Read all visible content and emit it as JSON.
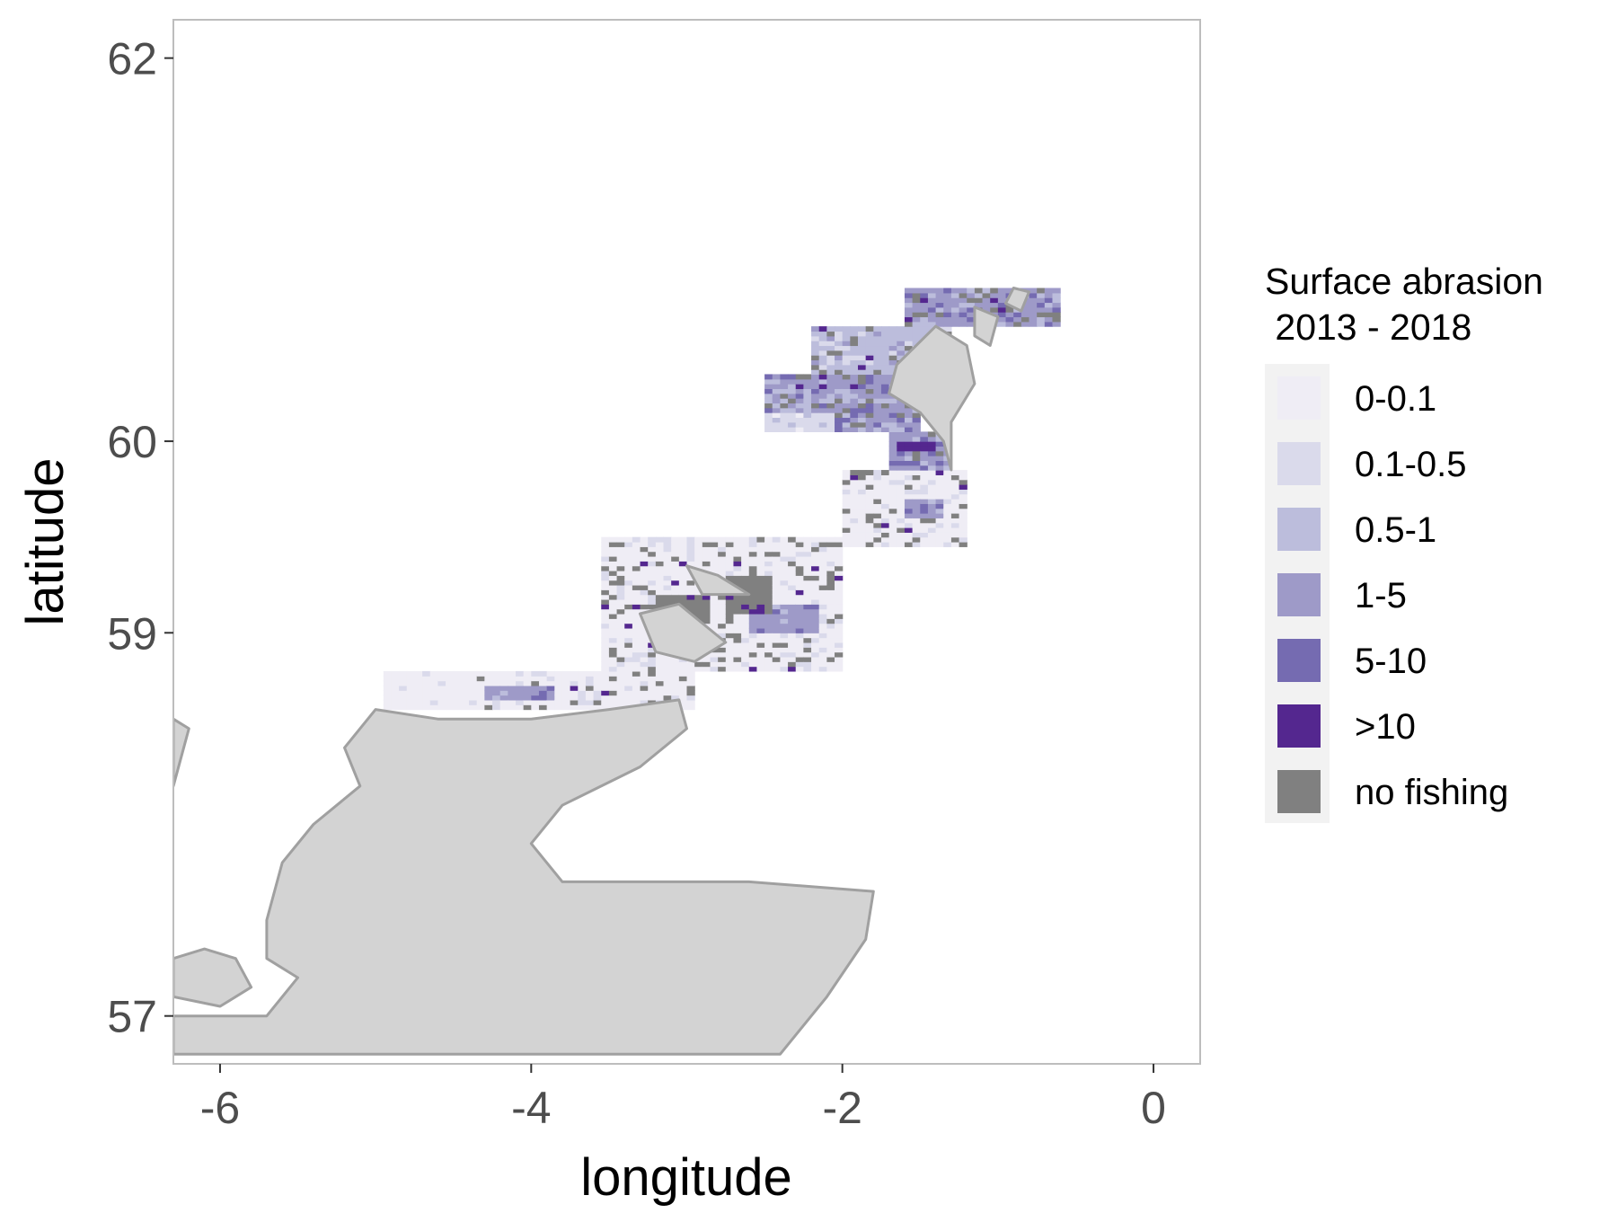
{
  "axes": {
    "xlabel": "longitude",
    "ylabel": "latitude",
    "xlim": [
      -6.3,
      0.3
    ],
    "ylim": [
      56.75,
      62.2
    ],
    "x_ticks": [
      -6,
      -4,
      -2,
      0
    ],
    "y_ticks": [
      57,
      59,
      60,
      62
    ],
    "grid": false,
    "panel_border_color": "#bdbdbd"
  },
  "legend": {
    "title_line1": "Surface abrasion",
    "title_line2": " 2013 - 2018",
    "placement": "right",
    "items": [
      {
        "label": "0-0.1",
        "color": "#efedf5"
      },
      {
        "label": "0.1-0.5",
        "color": "#dadaeb"
      },
      {
        "label": "0.5-1",
        "color": "#bcbddc"
      },
      {
        "label": "1-5",
        "color": "#9e9ac8"
      },
      {
        "label": "5-10",
        "color": "#756bb1"
      },
      {
        "label": ">10",
        "color": "#54278f"
      },
      {
        "label": "no fishing",
        "color": "#808080"
      }
    ]
  },
  "land": {
    "fill": "#d3d3d3",
    "stroke": "#a0a0a0",
    "polygons": [
      {
        "name": "mainland",
        "points": [
          [
            -5.2,
            58.4
          ],
          [
            -5.0,
            58.6
          ],
          [
            -4.6,
            58.55
          ],
          [
            -4.0,
            58.55
          ],
          [
            -3.5,
            58.6
          ],
          [
            -3.05,
            58.65
          ],
          [
            -3.0,
            58.5
          ],
          [
            -3.3,
            58.3
          ],
          [
            -3.8,
            58.1
          ],
          [
            -4.0,
            57.9
          ],
          [
            -3.8,
            57.7
          ],
          [
            -3.3,
            57.7
          ],
          [
            -2.6,
            57.7
          ],
          [
            -1.8,
            57.65
          ],
          [
            -1.85,
            57.4
          ],
          [
            -2.1,
            57.1
          ],
          [
            -2.4,
            56.8
          ],
          [
            -6.3,
            56.8
          ],
          [
            -6.3,
            57.0
          ],
          [
            -5.7,
            57.0
          ],
          [
            -5.5,
            57.2
          ],
          [
            -5.7,
            57.3
          ],
          [
            -5.7,
            57.5
          ],
          [
            -5.6,
            57.8
          ],
          [
            -5.4,
            58.0
          ],
          [
            -5.1,
            58.2
          ]
        ]
      },
      {
        "name": "skye",
        "points": [
          [
            -6.3,
            57.3
          ],
          [
            -6.1,
            57.35
          ],
          [
            -5.9,
            57.3
          ],
          [
            -5.8,
            57.15
          ],
          [
            -6.0,
            57.05
          ],
          [
            -6.3,
            57.1
          ]
        ]
      },
      {
        "name": "lewis",
        "points": [
          [
            -6.3,
            58.2
          ],
          [
            -6.2,
            58.5
          ],
          [
            -6.3,
            58.55
          ]
        ]
      },
      {
        "name": "orkney-mainland",
        "points": [
          [
            -3.3,
            59.1
          ],
          [
            -3.05,
            59.15
          ],
          [
            -2.9,
            59.05
          ],
          [
            -2.75,
            58.95
          ],
          [
            -2.95,
            58.85
          ],
          [
            -3.2,
            58.9
          ]
        ]
      },
      {
        "name": "orkney-north",
        "points": [
          [
            -3.0,
            59.35
          ],
          [
            -2.8,
            59.3
          ],
          [
            -2.6,
            59.2
          ],
          [
            -2.9,
            59.2
          ]
        ]
      },
      {
        "name": "shetland-mainland",
        "points": [
          [
            -1.4,
            60.6
          ],
          [
            -1.2,
            60.5
          ],
          [
            -1.15,
            60.3
          ],
          [
            -1.3,
            60.1
          ],
          [
            -1.3,
            59.95
          ],
          [
            -1.3,
            59.85
          ],
          [
            -1.35,
            60.0
          ],
          [
            -1.5,
            60.15
          ],
          [
            -1.6,
            60.2
          ],
          [
            -1.7,
            60.25
          ],
          [
            -1.65,
            60.4
          ]
        ]
      },
      {
        "name": "yell",
        "points": [
          [
            -1.15,
            60.7
          ],
          [
            -1.0,
            60.65
          ],
          [
            -1.05,
            60.5
          ],
          [
            -1.15,
            60.55
          ]
        ]
      },
      {
        "name": "unst",
        "points": [
          [
            -0.9,
            60.8
          ],
          [
            -0.8,
            60.78
          ],
          [
            -0.85,
            60.68
          ],
          [
            -0.95,
            60.72
          ]
        ]
      }
    ]
  },
  "grid_regions": [
    {
      "name": "west-north-coast",
      "x": [
        -4.95,
        -2.95
      ],
      "y": [
        58.6,
        58.8
      ],
      "default": 0
    },
    {
      "name": "orkney-box",
      "x": [
        -3.55,
        -2.0
      ],
      "y": [
        58.8,
        59.5
      ],
      "default": 0
    },
    {
      "name": "fair-isle-box",
      "x": [
        -2.0,
        -1.2
      ],
      "y": [
        59.45,
        59.85
      ],
      "default": 0
    },
    {
      "name": "shetland-south",
      "x": [
        -1.7,
        -1.3
      ],
      "y": [
        59.85,
        60.05
      ],
      "default": 3
    },
    {
      "name": "shetland-west",
      "x": [
        -2.5,
        -1.5
      ],
      "y": [
        60.05,
        60.35
      ],
      "default": 3
    },
    {
      "name": "shetland-north-west",
      "x": [
        -2.2,
        -1.3
      ],
      "y": [
        60.35,
        60.6
      ],
      "default": 2
    },
    {
      "name": "shetland-north",
      "x": [
        -1.6,
        -0.6
      ],
      "y": [
        60.6,
        60.8
      ],
      "default": 3
    }
  ],
  "patches": [
    {
      "name": "west-coast-light",
      "x": [
        -4.95,
        -4.4
      ],
      "y": [
        58.6,
        58.8
      ],
      "cat": 0
    },
    {
      "name": "pentland-band",
      "x": [
        -4.3,
        -3.85
      ],
      "y": [
        58.65,
        58.72
      ],
      "cat": 3
    },
    {
      "name": "orkney-dense-1",
      "x": [
        -3.2,
        -2.85
      ],
      "y": [
        59.05,
        59.2
      ],
      "cat": 6
    },
    {
      "name": "orkney-dense-2",
      "x": [
        -2.75,
        -2.45
      ],
      "y": [
        59.1,
        59.3
      ],
      "cat": 6
    },
    {
      "name": "orkney-east",
      "x": [
        -2.6,
        -2.15
      ],
      "y": [
        59.0,
        59.15
      ],
      "cat": 3
    },
    {
      "name": "fair-isle-east",
      "x": [
        -1.6,
        -1.35
      ],
      "y": [
        59.6,
        59.7
      ],
      "cat": 3
    },
    {
      "name": "shetland-hotspot",
      "x": [
        -1.65,
        -1.4
      ],
      "y": [
        59.95,
        60.0
      ],
      "cat": 5
    },
    {
      "name": "shetland-west-edge",
      "x": [
        -2.5,
        -2.05
      ],
      "y": [
        60.05,
        60.15
      ],
      "cat": 1
    },
    {
      "name": "shetland-north-mid",
      "x": [
        -1.8,
        -1.4
      ],
      "y": [
        60.5,
        60.6
      ],
      "cat": 2
    }
  ]
}
